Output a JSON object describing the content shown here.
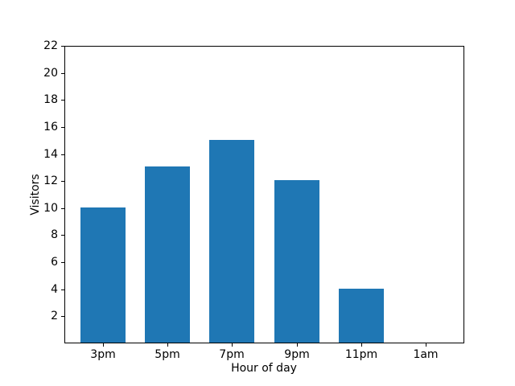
{
  "chart_data": {
    "type": "bar",
    "title": "",
    "xlabel": "Hour of day",
    "ylabel": "Visitors",
    "categories": [
      "3pm",
      "5pm",
      "7pm",
      "9pm",
      "11pm",
      "1am"
    ],
    "values": [
      10,
      13,
      15,
      12,
      4,
      0
    ],
    "yticks": [
      2,
      4,
      6,
      8,
      10,
      12,
      14,
      16,
      18,
      20,
      22
    ],
    "ylim": [
      0,
      22
    ],
    "bar_color": "#1f77b4",
    "axis_color": "#000000",
    "grid": false,
    "legend": false,
    "legend_position": "none"
  }
}
